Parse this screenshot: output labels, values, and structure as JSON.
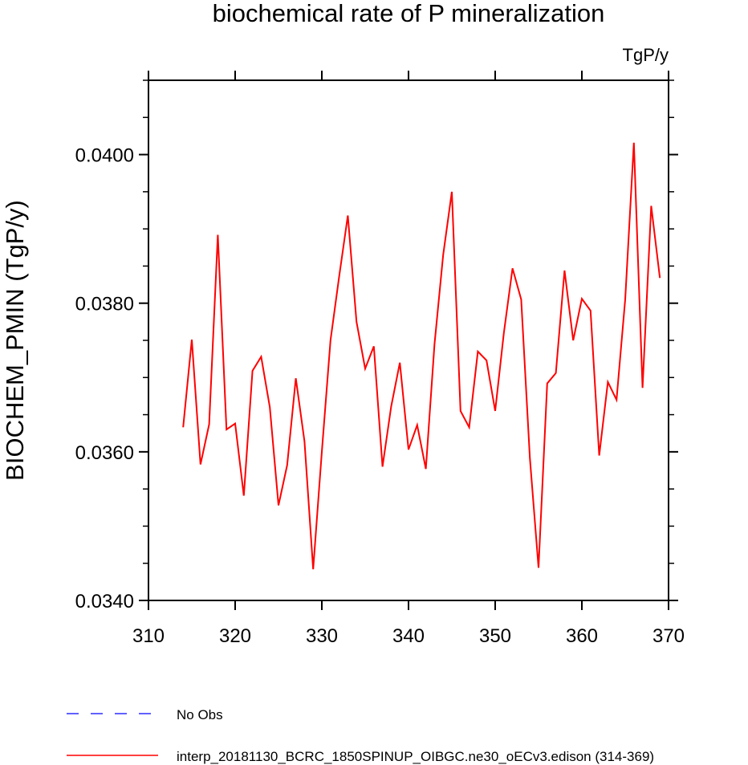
{
  "chart_data": {
    "type": "line",
    "title": "biochemical rate of P mineralization",
    "units_label": "TgP/y",
    "xlabel": "",
    "ylabel": "BIOCHEM_PMIN  (TgP/y)",
    "xlim": [
      310,
      370
    ],
    "ylim": [
      0.034,
      0.041
    ],
    "x_ticks": [
      310,
      320,
      330,
      340,
      350,
      360,
      370
    ],
    "x_tick_labels": [
      "310",
      "320",
      "330",
      "340",
      "350",
      "360",
      "370"
    ],
    "y_ticks": [
      0.034,
      0.036,
      0.038,
      0.04
    ],
    "y_tick_labels": [
      "0.0340",
      "0.0360",
      "0.0380",
      "0.0400"
    ],
    "series": [
      {
        "name": "interp_20181130_BCRC_1850SPINUP_OIBGC.ne30_oECv3.edison (314-369)",
        "color": "#ff0000",
        "style": "solid",
        "x": [
          314,
          315,
          316,
          317,
          318,
          319,
          320,
          321,
          322,
          323,
          324,
          325,
          326,
          327,
          328,
          329,
          330,
          331,
          332,
          333,
          334,
          335,
          336,
          337,
          338,
          339,
          340,
          341,
          342,
          343,
          344,
          345,
          346,
          347,
          348,
          349,
          350,
          351,
          352,
          353,
          354,
          355,
          356,
          357,
          358,
          359,
          360,
          361,
          362,
          363,
          364,
          365,
          366,
          367,
          368,
          369
        ],
        "values": [
          0.03633,
          0.03751,
          0.03583,
          0.03637,
          0.03892,
          0.0363,
          0.03638,
          0.03541,
          0.03709,
          0.03728,
          0.0366,
          0.03528,
          0.03582,
          0.03699,
          0.03614,
          0.03442,
          0.036,
          0.0375,
          0.03836,
          0.03918,
          0.03775,
          0.03712,
          0.03742,
          0.0358,
          0.03661,
          0.0372,
          0.03603,
          0.03636,
          0.03577,
          0.03745,
          0.03865,
          0.0395,
          0.03655,
          0.03633,
          0.03735,
          0.03723,
          0.03655,
          0.0376,
          0.03847,
          0.03805,
          0.03592,
          0.03444,
          0.03692,
          0.03706,
          0.03844,
          0.0375,
          0.03806,
          0.0379,
          0.03595,
          0.03694,
          0.0367,
          0.03805,
          0.04016,
          0.03686,
          0.03931,
          0.03834
        ]
      },
      {
        "name": "No Obs",
        "color": "#0000ff",
        "style": "dashed",
        "x": [],
        "values": []
      }
    ],
    "legend_position": "bottom",
    "grid": false
  }
}
